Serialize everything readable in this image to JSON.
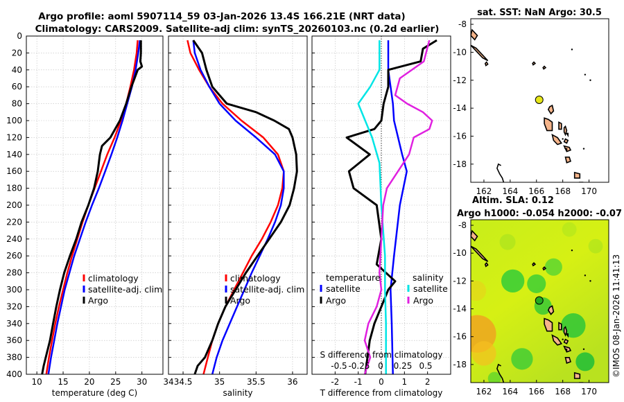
{
  "titles": {
    "line1": "Argo profile: aoml 5907114_59 03-Jan-2026 13.4S 166.21E (NRT data)",
    "line2": "Climatology: CARS2009. Satellite-adj clim: synTS_20260103.nc (0.2d earlier)"
  },
  "watermark": "©IMOS 08-Jan-2026 11:41:13",
  "colors": {
    "climatology": "#ff0000",
    "satellite": "#0000ff",
    "argo": "#000000",
    "satellite_s": "#00e5e5",
    "argo_s": "#e020e0",
    "land": "#f5b48a"
  },
  "chart_data": [
    {
      "name": "temperature-panel",
      "type": "line",
      "xlabel": "temperature (deg C)",
      "xlim": [
        8,
        34
      ],
      "xticks": [
        10,
        15,
        20,
        25,
        30
      ],
      "ylim": [
        0,
        400
      ],
      "yticks": [
        0,
        20,
        40,
        60,
        80,
        100,
        120,
        140,
        160,
        180,
        200,
        220,
        240,
        260,
        280,
        300,
        320,
        340,
        360,
        380,
        400
      ],
      "legend": [
        "climatology",
        "satellite-adj. clim",
        "Argo"
      ],
      "legend_position": "lower-right",
      "series": [
        {
          "name": "climatology",
          "depth": [
            5,
            20,
            40,
            60,
            80,
            100,
            120,
            140,
            160,
            180,
            200,
            220,
            240,
            260,
            280,
            300,
            320,
            340,
            360,
            380,
            400
          ],
          "values": [
            29.2,
            29.0,
            28.5,
            27.8,
            27.0,
            26.0,
            24.8,
            23.4,
            22.2,
            21.0,
            19.8,
            18.7,
            17.7,
            16.7,
            15.8,
            15.0,
            14.2,
            13.5,
            12.9,
            12.3,
            11.8
          ]
        },
        {
          "name": "satellite-adj. clim",
          "depth": [
            5,
            20,
            40,
            60,
            80,
            100,
            120,
            140,
            160,
            180,
            200,
            220,
            240,
            260,
            280,
            300,
            320,
            340,
            360,
            380,
            400
          ],
          "values": [
            29.6,
            29.3,
            28.8,
            28.1,
            27.2,
            26.3,
            25.3,
            24.2,
            23.0,
            21.8,
            20.5,
            19.3,
            18.2,
            17.1,
            16.2,
            15.3,
            14.6,
            13.9,
            13.3,
            12.7,
            12.2
          ]
        },
        {
          "name": "Argo",
          "depth": [
            5,
            20,
            30,
            36,
            40,
            50,
            60,
            80,
            100,
            120,
            130,
            140,
            160,
            180,
            200,
            220,
            240,
            260,
            280,
            300,
            320,
            340,
            360,
            380,
            390,
            400
          ],
          "values": [
            29.8,
            29.8,
            29.7,
            30.0,
            29.2,
            28.6,
            28.0,
            27.0,
            25.8,
            24.0,
            22.4,
            22.0,
            21.6,
            20.9,
            19.8,
            18.5,
            17.5,
            16.3,
            15.2,
            14.4,
            13.7,
            13.1,
            12.5,
            11.7,
            11.3,
            11.0
          ]
        }
      ]
    },
    {
      "name": "salinity-panel",
      "type": "line",
      "xlabel": "salinity",
      "xlim": [
        34.3,
        36.2
      ],
      "xticks": [
        34.5,
        35,
        35.5,
        36
      ],
      "ylim": [
        0,
        400
      ],
      "legend": [
        "climatology",
        "satellite-adj. clim",
        "Argo"
      ],
      "legend_position": "lower-right",
      "series": [
        {
          "name": "climatology",
          "depth": [
            5,
            20,
            40,
            60,
            80,
            100,
            120,
            140,
            160,
            180,
            200,
            220,
            240,
            260,
            280,
            300,
            320,
            340,
            360,
            380,
            400
          ],
          "values": [
            34.56,
            34.6,
            34.72,
            34.86,
            35.04,
            35.3,
            35.6,
            35.8,
            35.88,
            35.86,
            35.8,
            35.7,
            35.58,
            35.44,
            35.32,
            35.2,
            35.08,
            34.98,
            34.9,
            34.84,
            34.78
          ]
        },
        {
          "name": "satellite-adj. clim",
          "depth": [
            5,
            20,
            40,
            60,
            80,
            100,
            120,
            140,
            160,
            180,
            200,
            220,
            240,
            260,
            280,
            300,
            320,
            340,
            360,
            380,
            400
          ],
          "values": [
            34.64,
            34.66,
            34.74,
            34.86,
            35.0,
            35.22,
            35.5,
            35.76,
            35.88,
            35.88,
            35.84,
            35.76,
            35.66,
            35.55,
            35.44,
            35.34,
            35.24,
            35.14,
            35.04,
            34.96,
            34.9
          ]
        },
        {
          "name": "Argo",
          "depth": [
            5,
            20,
            40,
            60,
            80,
            90,
            100,
            110,
            120,
            140,
            160,
            180,
            200,
            220,
            240,
            260,
            280,
            300,
            320,
            340,
            360,
            380,
            390,
            400
          ],
          "values": [
            34.64,
            34.76,
            34.82,
            34.9,
            35.1,
            35.5,
            35.75,
            35.95,
            36.0,
            36.05,
            36.06,
            36.02,
            35.96,
            35.84,
            35.68,
            35.52,
            35.36,
            35.22,
            35.08,
            34.98,
            34.9,
            34.8,
            34.7,
            34.66
          ]
        }
      ]
    },
    {
      "name": "difference-panel",
      "type": "line",
      "xlabel": "T difference from climatology",
      "xlim": [
        -3,
        3
      ],
      "xticks": [
        -2,
        -1,
        0,
        1,
        2
      ],
      "xlabel_top": "S difference from climatology",
      "top_ticks": [
        "-0.5",
        "-0.25",
        "0",
        "0.25",
        "0.5"
      ],
      "ylim": [
        0,
        400
      ],
      "legend_headers": [
        "temperature",
        "salinity"
      ],
      "legend": [
        "satellite",
        "Argo",
        "satellite",
        "Argo"
      ],
      "series": [
        {
          "name": "temperature satellite",
          "depth": [
            5,
            40,
            80,
            100,
            140,
            160,
            200,
            260,
            300,
            340,
            400
          ],
          "values": [
            0.3,
            0.3,
            0.5,
            0.55,
            0.9,
            1.1,
            0.8,
            0.55,
            0.4,
            0.45,
            0.5
          ]
        },
        {
          "name": "temperature Argo",
          "depth": [
            5,
            15,
            30,
            40,
            60,
            80,
            100,
            110,
            120,
            140,
            160,
            180,
            200,
            240,
            270,
            290,
            300,
            320,
            340,
            360,
            380,
            400
          ],
          "values": [
            2.4,
            1.8,
            1.7,
            0.3,
            0.3,
            0.1,
            0.0,
            -0.3,
            -1.5,
            -0.5,
            -1.4,
            -1.2,
            -0.2,
            0.0,
            -0.2,
            0.6,
            0.3,
            0.0,
            -0.3,
            -0.5,
            -0.6,
            -0.7
          ]
        },
        {
          "name": "salinity satellite",
          "depth": [
            5,
            40,
            60,
            80,
            120,
            150,
            200,
            260,
            300,
            340,
            400
          ],
          "values": [
            -0.02,
            -0.02,
            -0.12,
            -0.25,
            -0.1,
            -0.02,
            0.0,
            0.04,
            0.04,
            0.05,
            0.05
          ]
        },
        {
          "name": "salinity Argo",
          "depth": [
            5,
            30,
            50,
            70,
            80,
            90,
            100,
            110,
            120,
            140,
            160,
            180,
            200,
            240,
            280,
            300,
            320,
            340,
            360,
            380,
            400
          ],
          "values": [
            0.52,
            0.46,
            0.2,
            0.15,
            0.28,
            0.45,
            0.55,
            0.52,
            0.35,
            0.3,
            0.18,
            0.06,
            0.02,
            0.0,
            -0.02,
            0.0,
            -0.05,
            -0.14,
            -0.18,
            -0.12,
            -0.18
          ]
        }
      ]
    },
    {
      "name": "sst-map",
      "type": "map",
      "title": "sat. SST: NaN Argo: 30.5",
      "xlim": [
        161,
        171.5
      ],
      "xticks": [
        162,
        164,
        166,
        168,
        170
      ],
      "ylim": [
        -19.3,
        -7.6
      ],
      "yticks": [
        -8,
        -10,
        -12,
        -14,
        -16,
        -18
      ],
      "argo_marker": {
        "lon": 166.21,
        "lat": -13.4,
        "color": "#e6e619"
      }
    },
    {
      "name": "sla-map",
      "type": "heatmap",
      "title_line1": "Altim. SLA: 0.12",
      "title_line2": "Argo h1000: -0.054 h2000: -0.07",
      "xlim": [
        161,
        171.5
      ],
      "xticks": [
        162,
        164,
        166,
        168,
        170
      ],
      "ylim": [
        -19.3,
        -7.6
      ],
      "yticks": [
        -8,
        -10,
        -12,
        -14,
        -16,
        -18
      ],
      "argo_marker": {
        "lon": 166.21,
        "lat": -13.4,
        "color": "#22aa22"
      }
    }
  ]
}
